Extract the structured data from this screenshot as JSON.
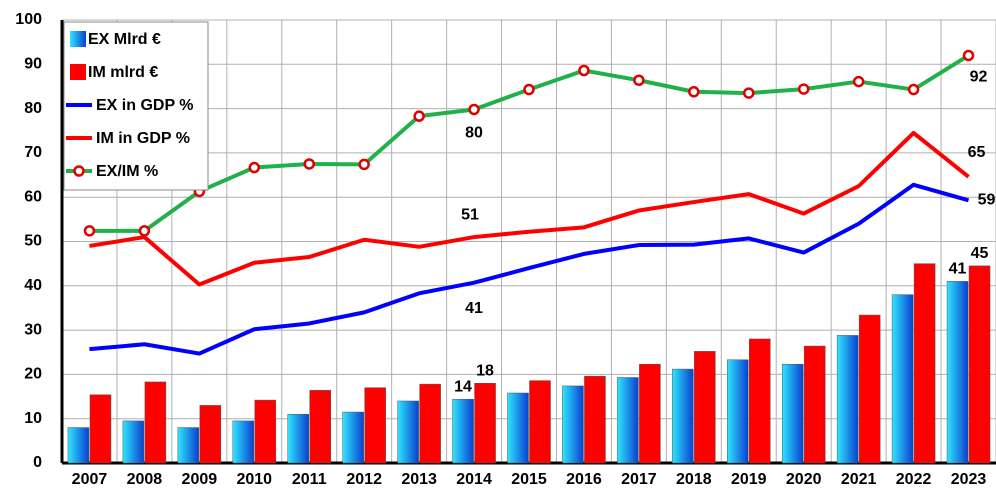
{
  "chart_data": {
    "type": "bar",
    "categories": [
      "2007",
      "2008",
      "2009",
      "2010",
      "2011",
      "2012",
      "2013",
      "2014",
      "2015",
      "2016",
      "2017",
      "2018",
      "2019",
      "2020",
      "2021",
      "2022",
      "2023"
    ],
    "ylim": [
      0,
      100
    ],
    "yticks": [
      0,
      10,
      20,
      30,
      40,
      50,
      60,
      70,
      80,
      90,
      100
    ],
    "grid": true,
    "legend": "upper left",
    "series": [
      {
        "name": "EX Mlrd €",
        "type": "bar",
        "color": "#0a3fd0",
        "values": [
          8,
          9.5,
          8,
          9.5,
          11,
          11.5,
          14,
          14.4,
          15.8,
          17.4,
          19.3,
          21.2,
          23.3,
          22.3,
          28.8,
          38,
          41
        ],
        "value_labels": [
          null,
          null,
          null,
          null,
          null,
          null,
          null,
          "14",
          null,
          null,
          null,
          null,
          null,
          null,
          null,
          null,
          "41"
        ]
      },
      {
        "name": "IM mlrd €",
        "type": "bar",
        "color": "#ff0000",
        "values": [
          15.4,
          18.3,
          13,
          14.2,
          16.4,
          17,
          17.8,
          18,
          18.6,
          19.6,
          22.3,
          25.2,
          28,
          26.4,
          33.4,
          45,
          44.5
        ],
        "value_labels": [
          null,
          null,
          null,
          null,
          null,
          null,
          null,
          "18",
          null,
          null,
          null,
          null,
          null,
          null,
          null,
          null,
          "45"
        ]
      },
      {
        "name": "EX in GDP %",
        "type": "line",
        "color": "#0000ff",
        "values": [
          25.7,
          26.8,
          24.7,
          30.2,
          31.5,
          34,
          38.3,
          40.7,
          44,
          47.2,
          49.2,
          49.3,
          50.7,
          47.5,
          54,
          62.8,
          59.3
        ],
        "value_labels": [
          null,
          null,
          null,
          null,
          null,
          null,
          null,
          "41",
          null,
          null,
          null,
          null,
          null,
          null,
          null,
          null,
          "59"
        ]
      },
      {
        "name": "IM in GDP %",
        "type": "line",
        "color": "#ff0000",
        "values": [
          49,
          51,
          40.3,
          45.2,
          46.5,
          50.4,
          48.8,
          51,
          52.2,
          53.2,
          57,
          58.9,
          60.7,
          56.3,
          62.5,
          74.5,
          64.6
        ],
        "value_labels": [
          null,
          null,
          null,
          null,
          null,
          null,
          null,
          "51",
          null,
          null,
          null,
          null,
          null,
          null,
          null,
          null,
          "65"
        ]
      },
      {
        "name": "EX/IM %",
        "type": "line",
        "color": "#22b04a",
        "marker": true,
        "values": [
          52.4,
          52.4,
          61.3,
          66.7,
          67.5,
          67.4,
          78.3,
          79.8,
          84.3,
          88.6,
          86.4,
          83.8,
          83.5,
          84.4,
          86.1,
          84.3,
          92
        ],
        "value_labels": [
          null,
          null,
          null,
          null,
          null,
          null,
          null,
          "80",
          null,
          null,
          null,
          null,
          null,
          null,
          null,
          null,
          "92"
        ]
      }
    ]
  }
}
